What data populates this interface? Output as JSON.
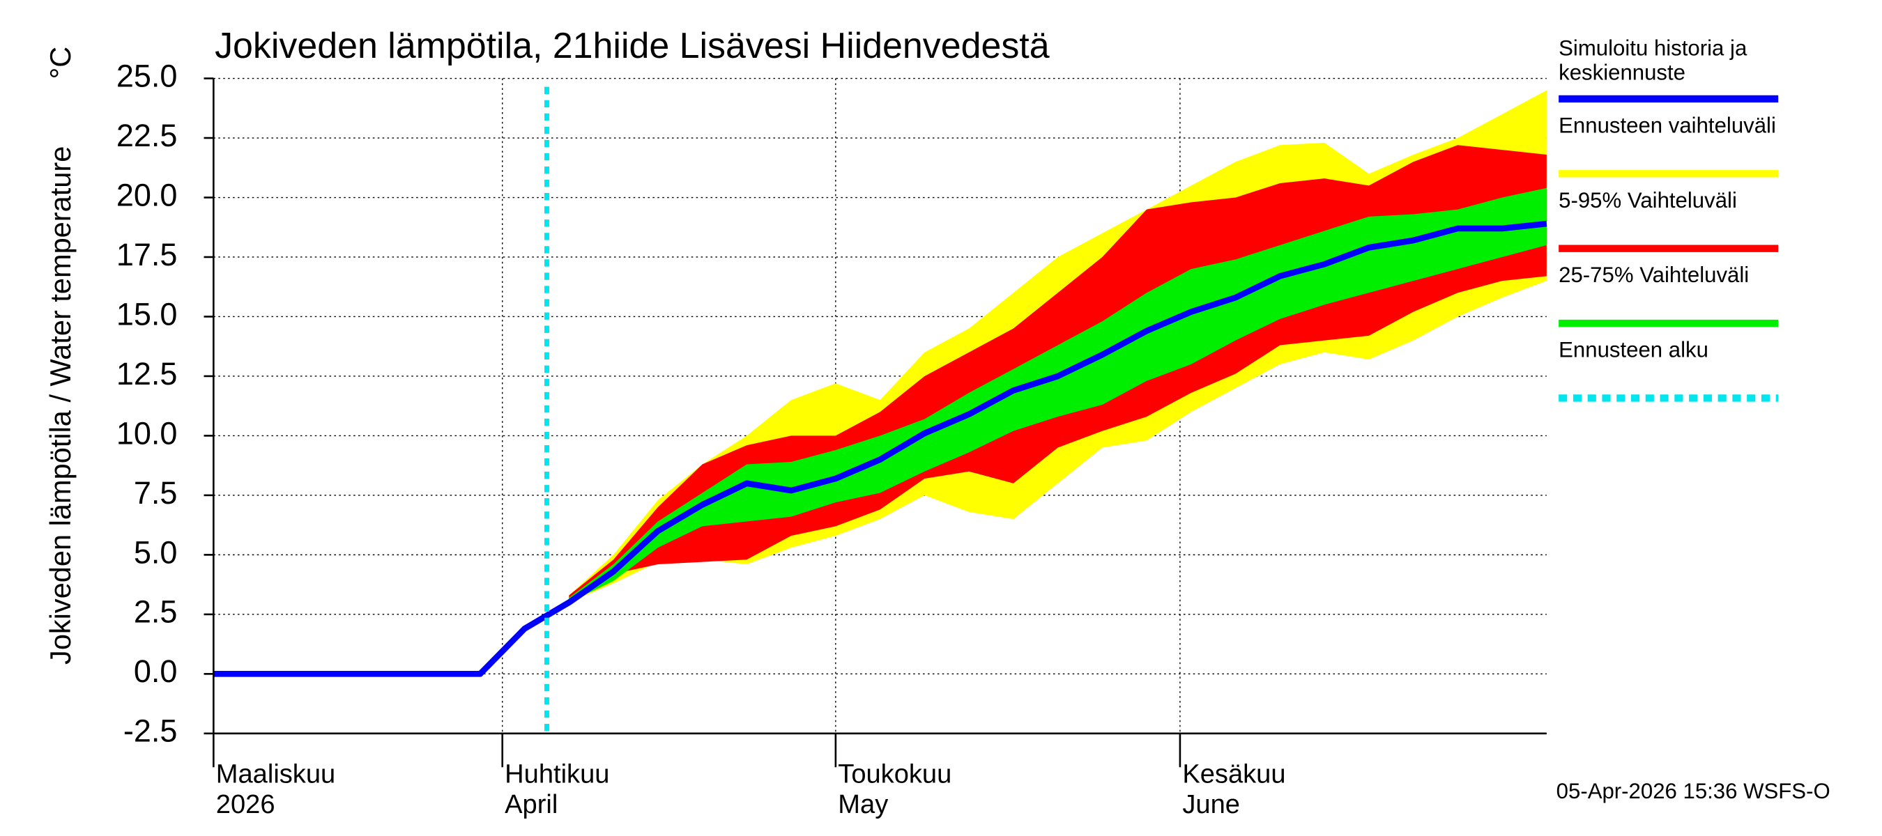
{
  "chart_data": {
    "type": "line",
    "title": "Jokiveden lämpötila, 21hiide Lisävesi Hiidenvedestä",
    "y_label": "Jokiveden lämpötila / Water temperature",
    "y_unit": "°C",
    "footer": "05-Apr-2026 15:36 WSFS-O",
    "x": [
      0,
      4,
      8,
      12,
      16,
      20,
      24,
      28,
      32,
      36,
      40,
      44,
      48,
      52,
      56,
      60,
      64,
      68,
      72,
      76,
      80,
      84,
      88,
      92,
      96,
      100,
      104,
      108,
      112,
      116,
      120
    ],
    "xlim": [
      0,
      120
    ],
    "xticks": [
      {
        "value": 0,
        "label": "Maaliskuu",
        "sublabel": "2026"
      },
      {
        "value": 26,
        "label": "Huhtikuu",
        "sublabel": "April"
      },
      {
        "value": 56,
        "label": "Toukokuu",
        "sublabel": "May"
      },
      {
        "value": 87,
        "label": "Kesäkuu",
        "sublabel": "June"
      }
    ],
    "ylim": [
      -2.5,
      25
    ],
    "yticks": [
      {
        "value": -2.5,
        "label": "-2.5"
      },
      {
        "value": 0,
        "label": "0.0"
      },
      {
        "value": 2.5,
        "label": "2.5"
      },
      {
        "value": 5,
        "label": "5.0"
      },
      {
        "value": 7.5,
        "label": "7.5"
      },
      {
        "value": 10,
        "label": "10.0"
      },
      {
        "value": 12.5,
        "label": "12.5"
      },
      {
        "value": 15,
        "label": "15.0"
      },
      {
        "value": 17.5,
        "label": "17.5"
      },
      {
        "value": 20,
        "label": "20.0"
      },
      {
        "value": 22.5,
        "label": "22.5"
      },
      {
        "value": 25,
        "label": "25.0"
      }
    ],
    "grid": true,
    "series": [
      {
        "name": "Simuloitu historia ja keskiennuste",
        "color": "#0000ff",
        "values": [
          0,
          0,
          0,
          0,
          0,
          0,
          0,
          1.9,
          3.0,
          4.3,
          6.0,
          7.1,
          8.0,
          7.7,
          8.2,
          9.0,
          10.1,
          10.9,
          11.9,
          12.5,
          13.4,
          14.4,
          15.2,
          15.8,
          16.7,
          17.2,
          17.9,
          18.2,
          18.7,
          18.7,
          18.9
        ]
      },
      {
        "name": "Ennusteen vaihteluväli",
        "color": "#ffff00",
        "low": [
          null,
          null,
          null,
          null,
          null,
          null,
          null,
          null,
          3.0,
          3.8,
          4.7,
          4.8,
          4.6,
          5.3,
          5.8,
          6.5,
          7.5,
          6.8,
          6.5,
          8.0,
          9.5,
          9.8,
          11.0,
          12.0,
          13.0,
          13.5,
          13.2,
          14.0,
          15.0,
          15.8,
          16.5
        ],
        "high": [
          null,
          null,
          null,
          null,
          null,
          null,
          null,
          null,
          3.3,
          5.0,
          7.3,
          8.8,
          10.0,
          11.5,
          12.2,
          11.5,
          13.5,
          14.5,
          16.0,
          17.5,
          18.5,
          19.5,
          20.5,
          21.5,
          22.2,
          22.3,
          21.0,
          21.8,
          22.5,
          23.5,
          24.5
        ]
      },
      {
        "name": "5-95% Vaihteluväli",
        "color": "#ff0000",
        "low": [
          null,
          null,
          null,
          null,
          null,
          null,
          null,
          null,
          3.0,
          4.2,
          4.6,
          4.7,
          4.8,
          5.8,
          6.2,
          6.9,
          8.2,
          8.5,
          8.0,
          9.5,
          10.2,
          10.8,
          11.8,
          12.6,
          13.8,
          14.0,
          14.2,
          15.2,
          16.0,
          16.5,
          16.7
        ],
        "high": [
          null,
          null,
          null,
          null,
          null,
          null,
          null,
          null,
          3.3,
          4.8,
          7.0,
          8.8,
          9.6,
          10.0,
          10.0,
          11.0,
          12.5,
          13.5,
          14.5,
          16.0,
          17.5,
          19.5,
          19.8,
          20.0,
          20.6,
          20.8,
          20.5,
          21.5,
          22.2,
          22.0,
          21.8
        ]
      },
      {
        "name": "25-75% Vaihteluväli",
        "color": "#00ee00",
        "low": [
          null,
          null,
          null,
          null,
          null,
          null,
          null,
          null,
          3.0,
          3.9,
          5.3,
          6.2,
          6.4,
          6.6,
          7.2,
          7.6,
          8.5,
          9.3,
          10.2,
          10.8,
          11.3,
          12.3,
          13.0,
          14.0,
          14.9,
          15.5,
          16.0,
          16.5,
          17.0,
          17.5,
          18.0
        ],
        "high": [
          null,
          null,
          null,
          null,
          null,
          null,
          null,
          null,
          3.2,
          4.6,
          6.4,
          7.6,
          8.8,
          8.9,
          9.4,
          10.0,
          10.7,
          11.8,
          12.8,
          13.8,
          14.8,
          16.0,
          17.0,
          17.4,
          18.0,
          18.6,
          19.2,
          19.3,
          19.5,
          20.0,
          20.4
        ]
      }
    ],
    "forecast_start": {
      "name": "Ennusteen alku",
      "x": 30,
      "color": "#00e5ee"
    }
  }
}
